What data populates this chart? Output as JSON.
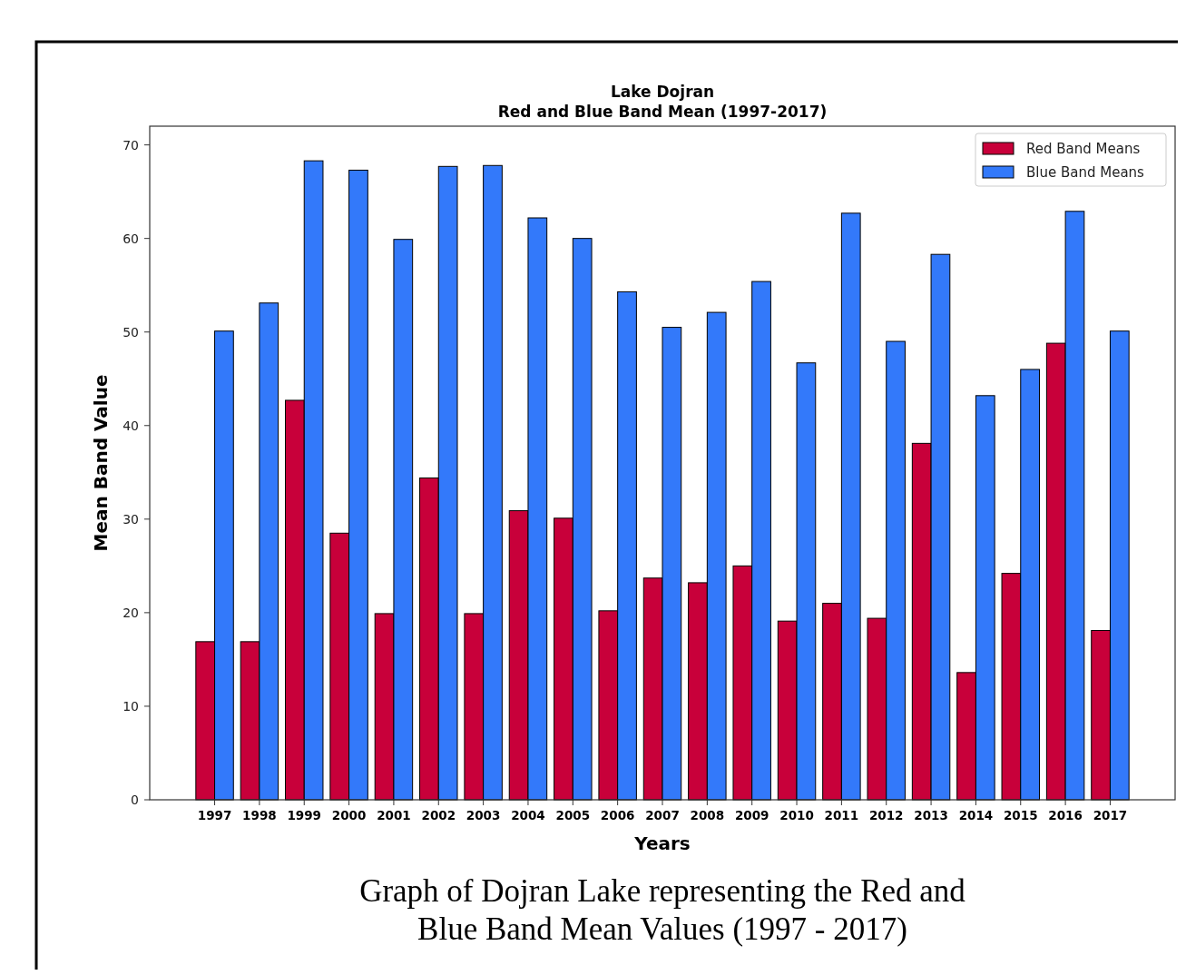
{
  "chart_data": {
    "type": "bar",
    "title": "Lake Dojran",
    "subtitle": "Red and Blue Band Mean (1997-2017)",
    "xlabel": "Years",
    "ylabel": "Mean Band Value",
    "categories": [
      "1997",
      "1998",
      "1999",
      "2000",
      "2001",
      "2002",
      "2003",
      "2004",
      "2005",
      "2006",
      "2007",
      "2008",
      "2009",
      "2010",
      "2011",
      "2012",
      "2013",
      "2014",
      "2015",
      "2016",
      "2017"
    ],
    "series": [
      {
        "name": "Red Band Means",
        "color": "#c8003a",
        "values": [
          16.9,
          16.9,
          42.7,
          28.5,
          19.9,
          34.4,
          19.9,
          30.9,
          30.1,
          20.2,
          23.7,
          23.2,
          25.0,
          19.1,
          21.0,
          19.4,
          38.1,
          13.6,
          24.2,
          48.8,
          18.1
        ]
      },
      {
        "name": "Blue Band Means",
        "color": "#3379fa",
        "values": [
          50.1,
          53.1,
          68.3,
          67.3,
          59.9,
          67.7,
          67.8,
          62.2,
          60.0,
          54.3,
          50.5,
          52.1,
          55.4,
          46.7,
          62.7,
          49.0,
          58.3,
          43.2,
          46.0,
          62.9,
          50.1
        ]
      }
    ],
    "ylim": [
      0,
      72
    ],
    "yticks": [
      0,
      10,
      20,
      30,
      40,
      50,
      60,
      70
    ],
    "grid": false,
    "legend": "top right",
    "annotations": [
      "Graph of Dojran Lake representing the Red and Blue Band Mean Values (1997 - 2017)"
    ]
  }
}
